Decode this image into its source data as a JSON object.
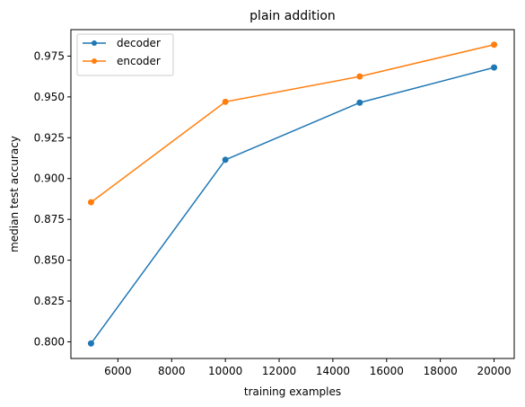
{
  "chart_data": {
    "type": "line",
    "title": "plain addition",
    "xlabel": "training examples",
    "ylabel": "median test accuracy",
    "x": [
      5000,
      10000,
      15000,
      20000
    ],
    "series": [
      {
        "name": "decoder",
        "values": [
          0.799,
          0.9115,
          0.9465,
          0.968
        ],
        "color": "#1f77b4"
      },
      {
        "name": "encoder",
        "values": [
          0.8855,
          0.947,
          0.9625,
          0.982
        ],
        "color": "#ff7f0e"
      }
    ],
    "xlim": [
      4250,
      20750
    ],
    "ylim": [
      0.7898,
      0.9912
    ],
    "xticks": [
      6000,
      8000,
      10000,
      12000,
      14000,
      16000,
      18000,
      20000
    ],
    "xtick_labels": [
      "6000",
      "8000",
      "10000",
      "12000",
      "14000",
      "16000",
      "18000",
      "20000"
    ],
    "yticks": [
      0.8,
      0.825,
      0.85,
      0.875,
      0.9,
      0.925,
      0.95,
      0.975
    ],
    "ytick_labels": [
      "0.800",
      "0.825",
      "0.850",
      "0.875",
      "0.900",
      "0.925",
      "0.950",
      "0.975"
    ],
    "legend": "upper-left",
    "grid": false
  }
}
